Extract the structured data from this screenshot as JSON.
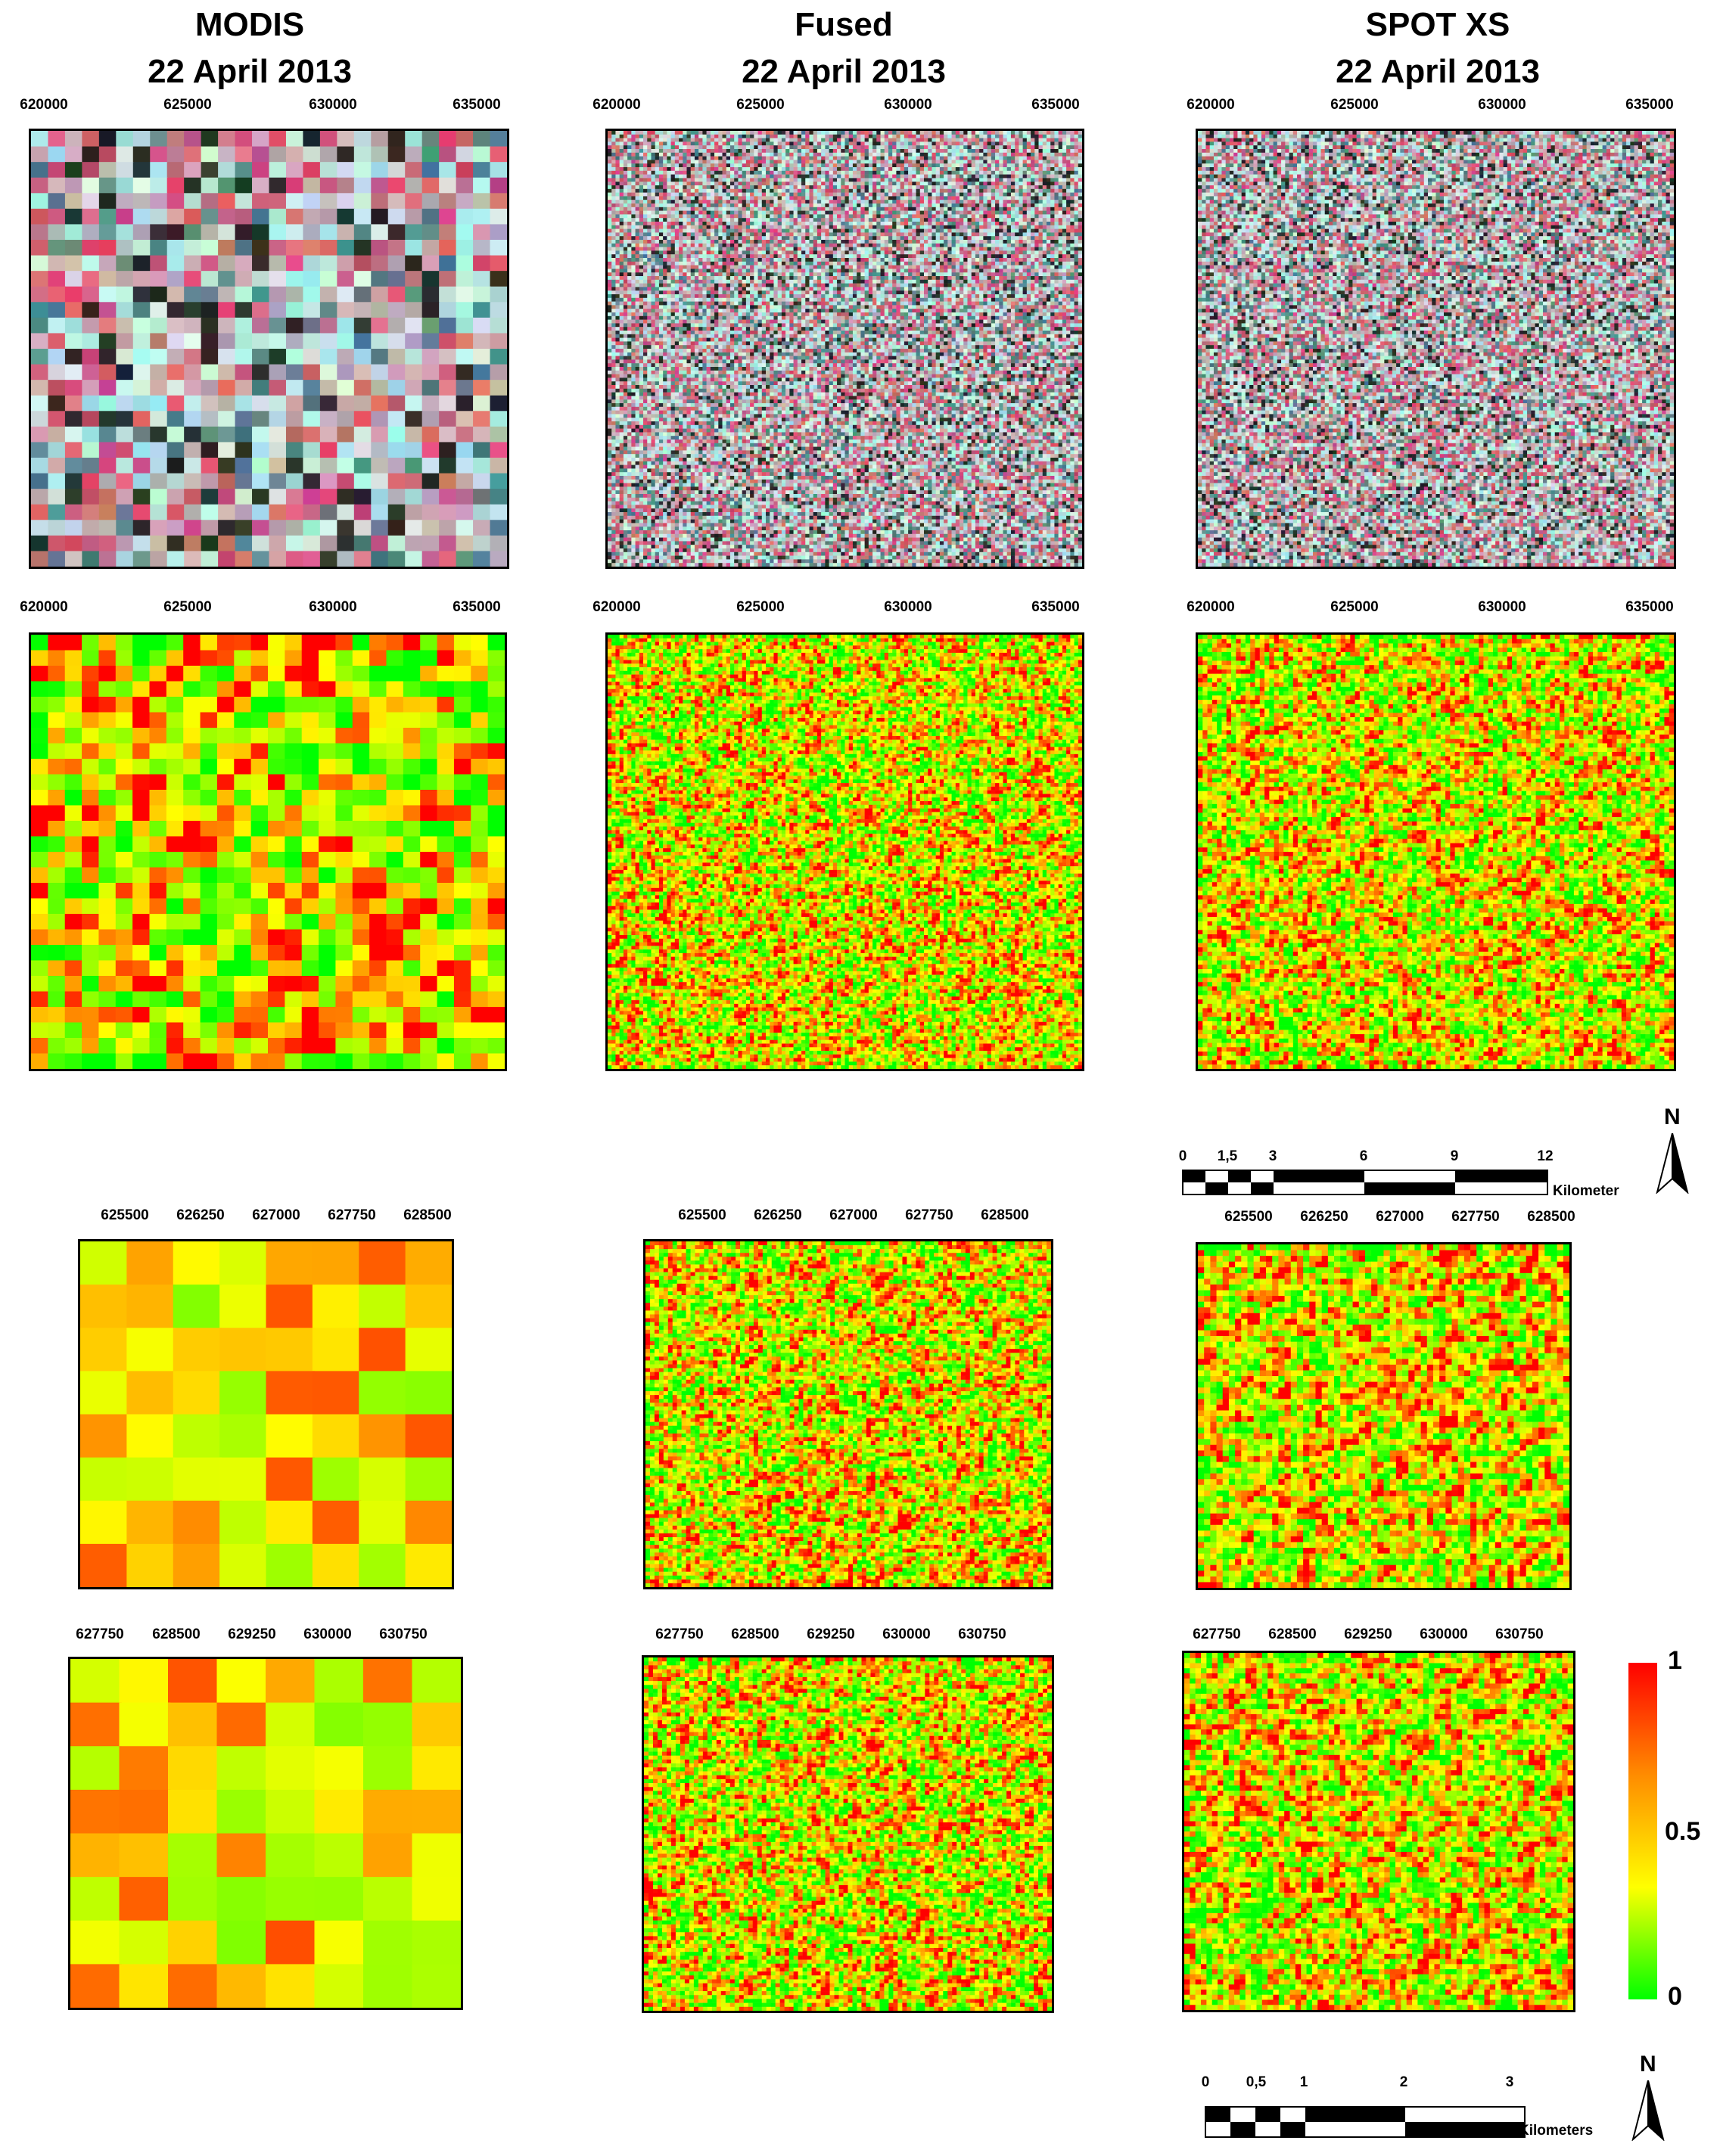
{
  "columns": [
    {
      "name": "MODIS",
      "date": "22 April 2013"
    },
    {
      "name": "Fused",
      "date": "22 April 2013"
    },
    {
      "name": "SPOT XS",
      "date": "22 April 2013"
    }
  ],
  "ticks": {
    "row1": [
      "620000",
      "625000",
      "630000",
      "635000"
    ],
    "row2": [
      "620000",
      "625000",
      "630000",
      "635000"
    ],
    "row3": [
      "625500",
      "626250",
      "627000",
      "627750",
      "628500"
    ],
    "row4": [
      "627750",
      "628500",
      "629250",
      "630000",
      "630750"
    ]
  },
  "scalebar_large": {
    "labels": [
      "0",
      "1,5",
      "3",
      "6",
      "9",
      "12"
    ],
    "unit": "Kilometer"
  },
  "scalebar_small": {
    "labels": [
      "0",
      "0,5",
      "1",
      "2",
      "3"
    ],
    "unit": "Kilometers"
  },
  "north": {
    "label": "N"
  },
  "legend": {
    "max": "1",
    "mid": "0.5",
    "min": "0",
    "colors": [
      "#ff0000",
      "#ffff00",
      "#00ff00"
    ]
  }
}
